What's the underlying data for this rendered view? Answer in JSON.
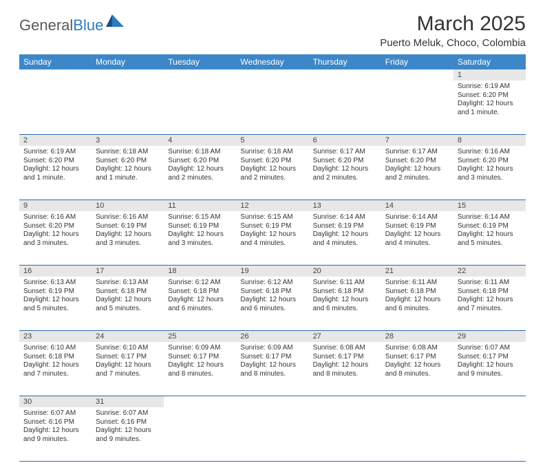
{
  "logo": {
    "gray": "General",
    "blue": "Blue"
  },
  "title": "March 2025",
  "location": "Puerto Meluk, Choco, Colombia",
  "colors": {
    "header_bg": "#3d87c9",
    "header_text": "#ffffff",
    "daynum_bg": "#e7e7e7",
    "row_border": "#2b6aa8",
    "logo_gray": "#5a5a5a",
    "logo_blue": "#2b7bbf"
  },
  "weekdays": [
    "Sunday",
    "Monday",
    "Tuesday",
    "Wednesday",
    "Thursday",
    "Friday",
    "Saturday"
  ],
  "weeks": [
    [
      null,
      null,
      null,
      null,
      null,
      null,
      {
        "n": "1",
        "sr": "Sunrise: 6:19 AM",
        "ss": "Sunset: 6:20 PM",
        "dl": "Daylight: 12 hours and 1 minute."
      }
    ],
    [
      {
        "n": "2",
        "sr": "Sunrise: 6:19 AM",
        "ss": "Sunset: 6:20 PM",
        "dl": "Daylight: 12 hours and 1 minute."
      },
      {
        "n": "3",
        "sr": "Sunrise: 6:18 AM",
        "ss": "Sunset: 6:20 PM",
        "dl": "Daylight: 12 hours and 1 minute."
      },
      {
        "n": "4",
        "sr": "Sunrise: 6:18 AM",
        "ss": "Sunset: 6:20 PM",
        "dl": "Daylight: 12 hours and 2 minutes."
      },
      {
        "n": "5",
        "sr": "Sunrise: 6:18 AM",
        "ss": "Sunset: 6:20 PM",
        "dl": "Daylight: 12 hours and 2 minutes."
      },
      {
        "n": "6",
        "sr": "Sunrise: 6:17 AM",
        "ss": "Sunset: 6:20 PM",
        "dl": "Daylight: 12 hours and 2 minutes."
      },
      {
        "n": "7",
        "sr": "Sunrise: 6:17 AM",
        "ss": "Sunset: 6:20 PM",
        "dl": "Daylight: 12 hours and 2 minutes."
      },
      {
        "n": "8",
        "sr": "Sunrise: 6:16 AM",
        "ss": "Sunset: 6:20 PM",
        "dl": "Daylight: 12 hours and 3 minutes."
      }
    ],
    [
      {
        "n": "9",
        "sr": "Sunrise: 6:16 AM",
        "ss": "Sunset: 6:20 PM",
        "dl": "Daylight: 12 hours and 3 minutes."
      },
      {
        "n": "10",
        "sr": "Sunrise: 6:16 AM",
        "ss": "Sunset: 6:19 PM",
        "dl": "Daylight: 12 hours and 3 minutes."
      },
      {
        "n": "11",
        "sr": "Sunrise: 6:15 AM",
        "ss": "Sunset: 6:19 PM",
        "dl": "Daylight: 12 hours and 3 minutes."
      },
      {
        "n": "12",
        "sr": "Sunrise: 6:15 AM",
        "ss": "Sunset: 6:19 PM",
        "dl": "Daylight: 12 hours and 4 minutes."
      },
      {
        "n": "13",
        "sr": "Sunrise: 6:14 AM",
        "ss": "Sunset: 6:19 PM",
        "dl": "Daylight: 12 hours and 4 minutes."
      },
      {
        "n": "14",
        "sr": "Sunrise: 6:14 AM",
        "ss": "Sunset: 6:19 PM",
        "dl": "Daylight: 12 hours and 4 minutes."
      },
      {
        "n": "15",
        "sr": "Sunrise: 6:14 AM",
        "ss": "Sunset: 6:19 PM",
        "dl": "Daylight: 12 hours and 5 minutes."
      }
    ],
    [
      {
        "n": "16",
        "sr": "Sunrise: 6:13 AM",
        "ss": "Sunset: 6:19 PM",
        "dl": "Daylight: 12 hours and 5 minutes."
      },
      {
        "n": "17",
        "sr": "Sunrise: 6:13 AM",
        "ss": "Sunset: 6:18 PM",
        "dl": "Daylight: 12 hours and 5 minutes."
      },
      {
        "n": "18",
        "sr": "Sunrise: 6:12 AM",
        "ss": "Sunset: 6:18 PM",
        "dl": "Daylight: 12 hours and 6 minutes."
      },
      {
        "n": "19",
        "sr": "Sunrise: 6:12 AM",
        "ss": "Sunset: 6:18 PM",
        "dl": "Daylight: 12 hours and 6 minutes."
      },
      {
        "n": "20",
        "sr": "Sunrise: 6:11 AM",
        "ss": "Sunset: 6:18 PM",
        "dl": "Daylight: 12 hours and 6 minutes."
      },
      {
        "n": "21",
        "sr": "Sunrise: 6:11 AM",
        "ss": "Sunset: 6:18 PM",
        "dl": "Daylight: 12 hours and 6 minutes."
      },
      {
        "n": "22",
        "sr": "Sunrise: 6:11 AM",
        "ss": "Sunset: 6:18 PM",
        "dl": "Daylight: 12 hours and 7 minutes."
      }
    ],
    [
      {
        "n": "23",
        "sr": "Sunrise: 6:10 AM",
        "ss": "Sunset: 6:18 PM",
        "dl": "Daylight: 12 hours and 7 minutes."
      },
      {
        "n": "24",
        "sr": "Sunrise: 6:10 AM",
        "ss": "Sunset: 6:17 PM",
        "dl": "Daylight: 12 hours and 7 minutes."
      },
      {
        "n": "25",
        "sr": "Sunrise: 6:09 AM",
        "ss": "Sunset: 6:17 PM",
        "dl": "Daylight: 12 hours and 8 minutes."
      },
      {
        "n": "26",
        "sr": "Sunrise: 6:09 AM",
        "ss": "Sunset: 6:17 PM",
        "dl": "Daylight: 12 hours and 8 minutes."
      },
      {
        "n": "27",
        "sr": "Sunrise: 6:08 AM",
        "ss": "Sunset: 6:17 PM",
        "dl": "Daylight: 12 hours and 8 minutes."
      },
      {
        "n": "28",
        "sr": "Sunrise: 6:08 AM",
        "ss": "Sunset: 6:17 PM",
        "dl": "Daylight: 12 hours and 8 minutes."
      },
      {
        "n": "29",
        "sr": "Sunrise: 6:07 AM",
        "ss": "Sunset: 6:17 PM",
        "dl": "Daylight: 12 hours and 9 minutes."
      }
    ],
    [
      {
        "n": "30",
        "sr": "Sunrise: 6:07 AM",
        "ss": "Sunset: 6:16 PM",
        "dl": "Daylight: 12 hours and 9 minutes."
      },
      {
        "n": "31",
        "sr": "Sunrise: 6:07 AM",
        "ss": "Sunset: 6:16 PM",
        "dl": "Daylight: 12 hours and 9 minutes."
      },
      null,
      null,
      null,
      null,
      null
    ]
  ]
}
